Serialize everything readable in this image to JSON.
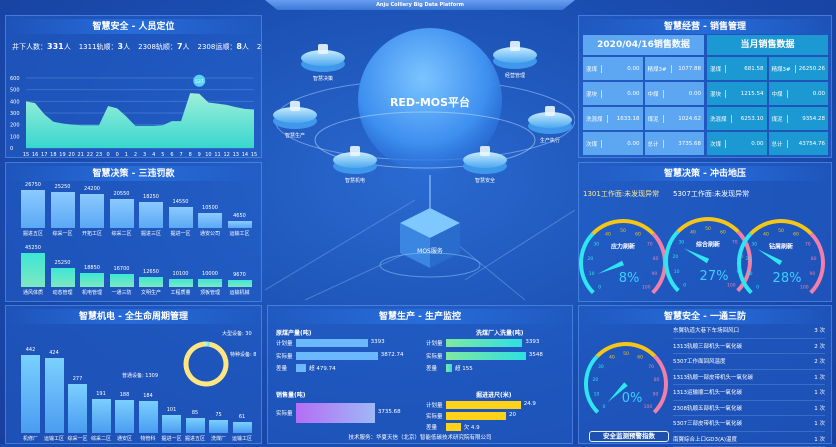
{
  "header": {
    "title": "Anju Colliery Big Data Platform"
  },
  "personnel": {
    "title": "智慧安全 - 人员定位",
    "stats": [
      {
        "label": "井下人数：",
        "value": "331",
        "unit": "人"
      },
      {
        "label": "1311轨顺：",
        "value": "3",
        "unit": "人"
      },
      {
        "label": "2308轨顺：",
        "value": "7",
        "unit": "人"
      },
      {
        "label": "2308运顺：",
        "value": "8",
        "unit": "人"
      },
      {
        "label": "2309",
        "value": "",
        "unit": ""
      }
    ],
    "chart_data": {
      "type": "area",
      "x": [
        "15",
        "16",
        "17",
        "18",
        "19",
        "20",
        "21",
        "22",
        "23",
        "0",
        "0",
        "1",
        "2",
        "3",
        "4",
        "5",
        "6",
        "7",
        "8",
        "9",
        "10",
        "11",
        "12",
        "13",
        "14",
        "15"
      ],
      "values": [
        400,
        385,
        290,
        225,
        210,
        200,
        195,
        195,
        195,
        360,
        340,
        270,
        190,
        190,
        190,
        195,
        230,
        230,
        470,
        465,
        390,
        380,
        370,
        350,
        335,
        330
      ],
      "ylim": [
        0,
        600
      ],
      "yticks": [
        0,
        100,
        200,
        300,
        400,
        500,
        600
      ],
      "marker": {
        "label": "537"
      },
      "color": "#5fe0d0"
    }
  },
  "penalty": {
    "title": "智慧决策 - 三违罚款",
    "chart_data": [
      {
        "type": "bar",
        "categories": [
          "掘进五区",
          "综采一区",
          "开拓工区",
          "综采二区",
          "掘进三区",
          "掘进一区",
          "通安公司",
          "运输工区"
        ],
        "values": [
          26750,
          25250,
          24200,
          20550,
          18250,
          14550,
          10500,
          4650
        ],
        "color": "#6cb8ff"
      },
      {
        "type": "bar",
        "categories": [
          "通风体质",
          "动态管理",
          "机电管理",
          "一通三防",
          "文明生产",
          "工程质量",
          "顶板管理",
          "运输机械"
        ],
        "values": [
          45250,
          25250,
          18850,
          16700,
          12650,
          10100,
          10000,
          9670
        ],
        "color": "#3de0d0"
      }
    ]
  },
  "equipment": {
    "title": "智慧机电 - 全生命周期管理",
    "chart_data": [
      {
        "type": "bar",
        "categories": [
          "机修厂",
          "运输工区",
          "综采一区",
          "综采二区",
          "通安区",
          "物管科",
          "掘进一区",
          "掘进五区",
          "洗煤厂",
          "运输工区"
        ],
        "values": [
          442,
          424,
          277,
          191,
          188,
          184,
          101,
          85,
          75,
          61
        ],
        "color": "#6cc4ff"
      },
      {
        "type": "pie",
        "labels": [
          "大型设备: 30",
          "特种设备: 8",
          "普通设备: 1309"
        ],
        "values": [
          30,
          8,
          1309
        ],
        "colors": [
          "#8ef0f0",
          "#8ef0f0",
          "#ffe680"
        ]
      }
    ]
  },
  "platform": {
    "center_label": "RED-MOS平台",
    "service_label": "MOS服务",
    "nodes": [
      "智慧决策",
      "经营管理",
      "智慧生产",
      "生产执行",
      "智慧机电",
      "智慧安全"
    ]
  },
  "production": {
    "title": "智慧生产 - 生产监控",
    "groups": [
      {
        "title": "原煤产量(吨)",
        "rows": [
          {
            "label": "计划量",
            "value": "3393",
            "num": 3393
          },
          {
            "label": "实际量",
            "value": "3872.74",
            "num": 3872.74
          },
          {
            "label": "差量",
            "value": "超 479.74",
            "num": 479.74
          }
        ],
        "color": "#6cb8ff",
        "max": 4500
      },
      {
        "title": "洗煤厂入洗量(吨)",
        "rows": [
          {
            "label": "计划量",
            "value": "3393",
            "num": 3393
          },
          {
            "label": "实际量",
            "value": "3548",
            "num": 3548
          },
          {
            "label": "差量",
            "value": "超 155",
            "num": 155
          }
        ],
        "color": "#3de0d0",
        "max": 4000
      },
      {
        "title": "销售量(吨)",
        "rows": [
          {
            "label": "实际量",
            "value": "3735.68",
            "num": 3735.68
          }
        ],
        "color": "#b47cf5",
        "max": 4500
      },
      {
        "title": "掘进进尺(米)",
        "rows": [
          {
            "label": "计划量",
            "value": "24.9",
            "num": 24.9
          },
          {
            "label": "实际量",
            "value": "20",
            "num": 20
          },
          {
            "label": "差量",
            "value": "欠 4.9",
            "num": 4.9
          }
        ],
        "color": "#ffd21a",
        "max": 30
      }
    ],
    "footer": "技术服务：华夏天信（北京）智能低碳技术研究院有限公司"
  },
  "sales": {
    "title": "智慧经营 - 销售管理",
    "daily": {
      "header": "2020/04/16销售数据",
      "cells": [
        [
          "混煤",
          "0.00"
        ],
        [
          "精煤3#",
          "1077.88"
        ],
        [
          "混块",
          "0.00"
        ],
        [
          "中煤",
          "0.00"
        ],
        [
          "洗混煤",
          "1633.18"
        ],
        [
          "煤泥",
          "1024.62"
        ],
        [
          "次煤",
          "0.00"
        ],
        [
          "总计",
          "3735.68"
        ]
      ]
    },
    "monthly": {
      "header": "当月销售数据",
      "cells": [
        [
          "混煤",
          "681.58"
        ],
        [
          "精煤3#",
          "26250.26"
        ],
        [
          "混块",
          "1215.54"
        ],
        [
          "中煤",
          "0.00"
        ],
        [
          "洗混煤",
          "6253.10"
        ],
        [
          "煤泥",
          "9354.28"
        ],
        [
          "次煤",
          "0.00"
        ],
        [
          "总计",
          "43754.76"
        ]
      ]
    }
  },
  "pressure": {
    "title": "智慧决策 - 冲击地压",
    "alerts": [
      "1301工作面:未发现异常",
      "5307工作面:未发现异常"
    ],
    "gauges": [
      {
        "label": "应力刷新",
        "value": 8,
        "text": "8%"
      },
      {
        "label": "综合刷新",
        "value": 27,
        "text": "27%"
      },
      {
        "label": "钻屑刷新",
        "value": 28,
        "text": "28%"
      }
    ]
  },
  "ventilation": {
    "title": "智慧安全 - 一通三防",
    "gauge": {
      "value": 0,
      "text": "0%"
    },
    "button": "安全监测预警指数",
    "items": [
      [
        "东翼轨道大巷下车场回风口",
        "3 次"
      ],
      [
        "1313轨顺三部机头一氧化碳",
        "2 次"
      ],
      [
        "5307工作面回风温度",
        "2 次"
      ],
      [
        "1313轨顺一部皮带机头一氧化碳",
        "1 次"
      ],
      [
        "1313运输顺二机头一氧化碳",
        "1 次"
      ],
      [
        "2308轨顺五部机头一氧化碳",
        "1 次"
      ],
      [
        "5307三部皮带机头一氧化碳",
        "1 次"
      ],
      [
        "南翼综合上口GD3(A)温度",
        "1 次"
      ]
    ]
  },
  "colors": {
    "gauge_cyan": "#2ee6f0",
    "gauge_yellow": "#f5c518",
    "gauge_pink": "#f27fa8",
    "value_text": "#3ad0ff"
  }
}
